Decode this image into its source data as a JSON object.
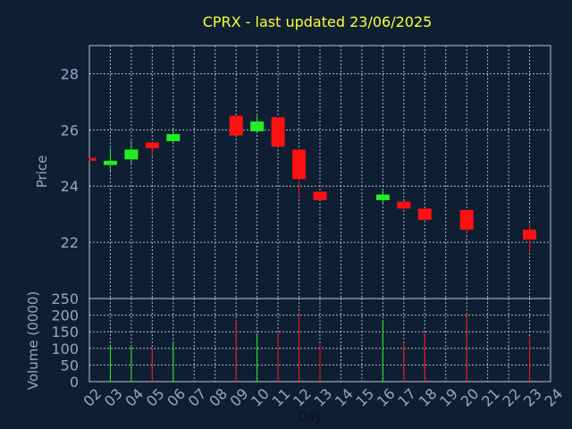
{
  "chart_data": {
    "type": "candlestick",
    "title": "CPRX - last updated 23/06/2025",
    "x_axis_label": "Day",
    "x_ticks": [
      "02",
      "03",
      "04",
      "05",
      "06",
      "07",
      "08",
      "09",
      "10",
      "11",
      "12",
      "13",
      "14",
      "15",
      "16",
      "17",
      "18",
      "19",
      "20",
      "21",
      "22",
      "23",
      "24"
    ],
    "price_panel": {
      "ylabel": "Price",
      "ylim": [
        20.0,
        29.0
      ],
      "yticks": [
        22,
        24,
        26,
        28
      ]
    },
    "volume_panel": {
      "ylabel": "Volume (0000)",
      "ylim": [
        0,
        250
      ],
      "yticks": [
        0,
        50,
        100,
        150,
        200,
        250
      ]
    },
    "candles": [
      {
        "day": "02",
        "open": 25.0,
        "high": 25.0,
        "low": 24.9,
        "close": 24.9,
        "volume": 0
      },
      {
        "day": "03",
        "open": 24.75,
        "high": 25.35,
        "low": 24.55,
        "close": 24.9,
        "volume": 110
      },
      {
        "day": "04",
        "open": 24.95,
        "high": 25.6,
        "low": 24.8,
        "close": 25.3,
        "volume": 110
      },
      {
        "day": "05",
        "open": 25.55,
        "high": 25.55,
        "low": 25.05,
        "close": 25.35,
        "volume": 100
      },
      {
        "day": "06",
        "open": 25.6,
        "high": 26.0,
        "low": 25.55,
        "close": 25.85,
        "volume": 120
      },
      {
        "day": "09",
        "open": 26.5,
        "high": 26.5,
        "low": 25.8,
        "close": 25.8,
        "volume": 185
      },
      {
        "day": "10",
        "open": 25.95,
        "high": 26.5,
        "low": 25.95,
        "close": 26.3,
        "volume": 145
      },
      {
        "day": "11",
        "open": 26.45,
        "high": 26.45,
        "low": 25.4,
        "close": 25.4,
        "volume": 150
      },
      {
        "day": "12",
        "open": 25.3,
        "high": 25.3,
        "low": 23.6,
        "close": 24.25,
        "volume": 205
      },
      {
        "day": "13",
        "open": 23.8,
        "high": 23.8,
        "low": 23.5,
        "close": 23.5,
        "volume": 110
      },
      {
        "day": "16",
        "open": 23.5,
        "high": 23.9,
        "low": 23.4,
        "close": 23.7,
        "volume": 180
      },
      {
        "day": "17",
        "open": 23.45,
        "high": 23.45,
        "low": 23.2,
        "close": 23.2,
        "volume": 115
      },
      {
        "day": "18",
        "open": 23.2,
        "high": 23.2,
        "low": 22.75,
        "close": 22.8,
        "volume": 145
      },
      {
        "day": "20",
        "open": 23.15,
        "high": 23.15,
        "low": 22.3,
        "close": 22.45,
        "volume": 205
      },
      {
        "day": "23",
        "open": 22.45,
        "high": 22.7,
        "low": 21.65,
        "close": 22.1,
        "volume": 135
      }
    ],
    "colors": {
      "up": "#22ee22",
      "down": "#ff1111",
      "background": "#0f1f33",
      "title": "#ffff33",
      "axis_text": "#8fa9c9"
    }
  }
}
